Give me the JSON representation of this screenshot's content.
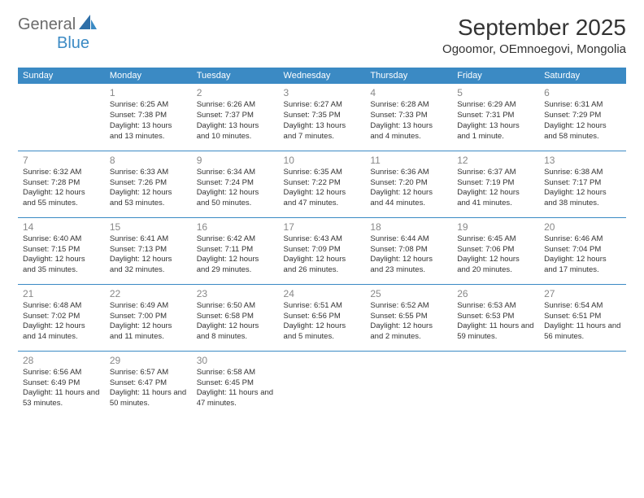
{
  "brand": {
    "part1": "General",
    "part2": "Blue"
  },
  "title": "September 2025",
  "location": "Ogoomor, OEmnoegovi, Mongolia",
  "colors": {
    "header_bg": "#3b8ac4",
    "header_text": "#ffffff",
    "daynum": "#888888",
    "body_text": "#333333",
    "rule": "#3b8ac4",
    "logo_gray": "#6b6b6b",
    "logo_blue": "#3b8ac4"
  },
  "weekdays": [
    "Sunday",
    "Monday",
    "Tuesday",
    "Wednesday",
    "Thursday",
    "Friday",
    "Saturday"
  ],
  "weeks": [
    [
      null,
      {
        "n": "1",
        "sr": "6:25 AM",
        "ss": "7:38 PM",
        "dl": "13 hours and 13 minutes."
      },
      {
        "n": "2",
        "sr": "6:26 AM",
        "ss": "7:37 PM",
        "dl": "13 hours and 10 minutes."
      },
      {
        "n": "3",
        "sr": "6:27 AM",
        "ss": "7:35 PM",
        "dl": "13 hours and 7 minutes."
      },
      {
        "n": "4",
        "sr": "6:28 AM",
        "ss": "7:33 PM",
        "dl": "13 hours and 4 minutes."
      },
      {
        "n": "5",
        "sr": "6:29 AM",
        "ss": "7:31 PM",
        "dl": "13 hours and 1 minute."
      },
      {
        "n": "6",
        "sr": "6:31 AM",
        "ss": "7:29 PM",
        "dl": "12 hours and 58 minutes."
      }
    ],
    [
      {
        "n": "7",
        "sr": "6:32 AM",
        "ss": "7:28 PM",
        "dl": "12 hours and 55 minutes."
      },
      {
        "n": "8",
        "sr": "6:33 AM",
        "ss": "7:26 PM",
        "dl": "12 hours and 53 minutes."
      },
      {
        "n": "9",
        "sr": "6:34 AM",
        "ss": "7:24 PM",
        "dl": "12 hours and 50 minutes."
      },
      {
        "n": "10",
        "sr": "6:35 AM",
        "ss": "7:22 PM",
        "dl": "12 hours and 47 minutes."
      },
      {
        "n": "11",
        "sr": "6:36 AM",
        "ss": "7:20 PM",
        "dl": "12 hours and 44 minutes."
      },
      {
        "n": "12",
        "sr": "6:37 AM",
        "ss": "7:19 PM",
        "dl": "12 hours and 41 minutes."
      },
      {
        "n": "13",
        "sr": "6:38 AM",
        "ss": "7:17 PM",
        "dl": "12 hours and 38 minutes."
      }
    ],
    [
      {
        "n": "14",
        "sr": "6:40 AM",
        "ss": "7:15 PM",
        "dl": "12 hours and 35 minutes."
      },
      {
        "n": "15",
        "sr": "6:41 AM",
        "ss": "7:13 PM",
        "dl": "12 hours and 32 minutes."
      },
      {
        "n": "16",
        "sr": "6:42 AM",
        "ss": "7:11 PM",
        "dl": "12 hours and 29 minutes."
      },
      {
        "n": "17",
        "sr": "6:43 AM",
        "ss": "7:09 PM",
        "dl": "12 hours and 26 minutes."
      },
      {
        "n": "18",
        "sr": "6:44 AM",
        "ss": "7:08 PM",
        "dl": "12 hours and 23 minutes."
      },
      {
        "n": "19",
        "sr": "6:45 AM",
        "ss": "7:06 PM",
        "dl": "12 hours and 20 minutes."
      },
      {
        "n": "20",
        "sr": "6:46 AM",
        "ss": "7:04 PM",
        "dl": "12 hours and 17 minutes."
      }
    ],
    [
      {
        "n": "21",
        "sr": "6:48 AM",
        "ss": "7:02 PM",
        "dl": "12 hours and 14 minutes."
      },
      {
        "n": "22",
        "sr": "6:49 AM",
        "ss": "7:00 PM",
        "dl": "12 hours and 11 minutes."
      },
      {
        "n": "23",
        "sr": "6:50 AM",
        "ss": "6:58 PM",
        "dl": "12 hours and 8 minutes."
      },
      {
        "n": "24",
        "sr": "6:51 AM",
        "ss": "6:56 PM",
        "dl": "12 hours and 5 minutes."
      },
      {
        "n": "25",
        "sr": "6:52 AM",
        "ss": "6:55 PM",
        "dl": "12 hours and 2 minutes."
      },
      {
        "n": "26",
        "sr": "6:53 AM",
        "ss": "6:53 PM",
        "dl": "11 hours and 59 minutes."
      },
      {
        "n": "27",
        "sr": "6:54 AM",
        "ss": "6:51 PM",
        "dl": "11 hours and 56 minutes."
      }
    ],
    [
      {
        "n": "28",
        "sr": "6:56 AM",
        "ss": "6:49 PM",
        "dl": "11 hours and 53 minutes."
      },
      {
        "n": "29",
        "sr": "6:57 AM",
        "ss": "6:47 PM",
        "dl": "11 hours and 50 minutes."
      },
      {
        "n": "30",
        "sr": "6:58 AM",
        "ss": "6:45 PM",
        "dl": "11 hours and 47 minutes."
      },
      null,
      null,
      null,
      null
    ]
  ],
  "labels": {
    "sunrise": "Sunrise:",
    "sunset": "Sunset:",
    "daylight": "Daylight:"
  }
}
